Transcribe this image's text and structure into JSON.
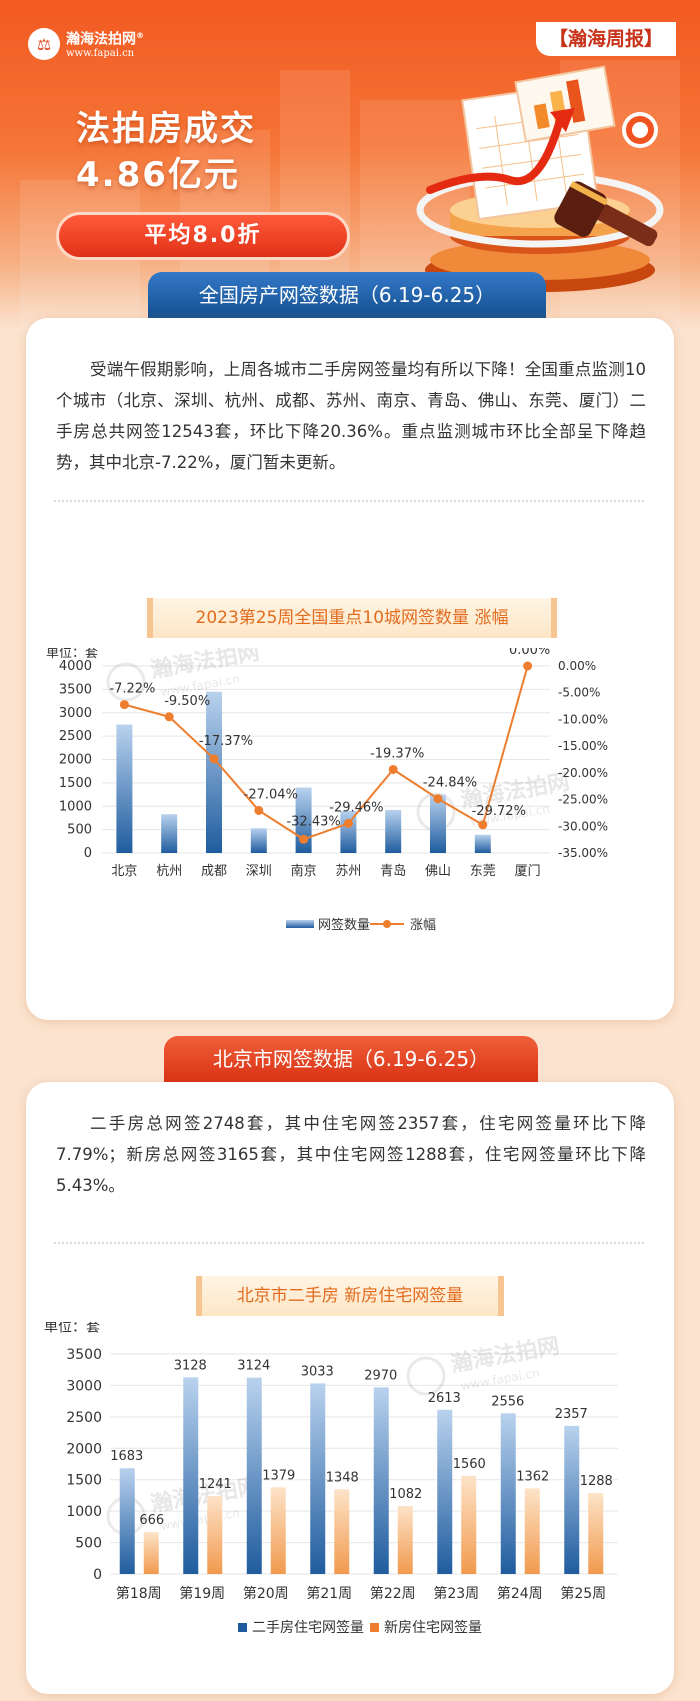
{
  "header": {
    "brand": "瀚海法拍网",
    "brand_mark": "®",
    "brand_url": "www.fapai.cn",
    "weekly_label": "【瀚海周报】",
    "headline_line1": "法拍房成交",
    "headline_line2": "4.86亿元",
    "discount_pill": "平均8.0折"
  },
  "section1": {
    "tab_title": "全国房产网签数据（6.19-6.25）",
    "paragraph": "受端午假期影响，上周各城市二手房网签量均有所以下降！全国重点监测10个城市（北京、深圳、杭州、成都、苏州、南京、青岛、佛山、东莞、厦门）二手房总共网签12543套，环比下降20.36%。重点监测城市环比全部呈下降趋势，其中北京-7.22%，厦门暂未更新。",
    "chart_ribbon": "2023第25周全国重点10城网签数量 涨幅"
  },
  "section2": {
    "tab_title": "北京市网签数据（6.19-6.25）",
    "paragraph": "二手房总网签2748套，其中住宅网签2357套，住宅网签量环比下降7.79%；新房总网签3165套，其中住宅网签1288套，住宅网签量环比下降5.43%。",
    "chart_ribbon": "北京市二手房 新房住宅网签量"
  },
  "watermark": {
    "name": "瀚海法拍网",
    "url": "www.fapai.cn"
  },
  "colors": {
    "blue": "#1f5c9e",
    "orange": "#ee7d2e",
    "red": "#d93215",
    "header": "#f25a22"
  },
  "chart_data": [
    {
      "type": "bar",
      "unit_label": "单位：套",
      "categories": [
        "北京",
        "杭州",
        "成都",
        "深圳",
        "南京",
        "苏州",
        "青岛",
        "佛山",
        "东莞",
        "厦门"
      ],
      "series": [
        {
          "name": "网签数量",
          "type": "bar",
          "axis": "left",
          "values": [
            2748,
            830,
            3450,
            530,
            1400,
            900,
            920,
            1250,
            390,
            null
          ]
        },
        {
          "name": "涨幅",
          "type": "line",
          "axis": "right",
          "values": [
            -7.22,
            -9.5,
            -17.37,
            -27.04,
            -32.43,
            -29.46,
            -19.37,
            -24.84,
            -29.72,
            0.0
          ],
          "labels": [
            "-7.22%",
            "-9.50%",
            "-17.37%",
            "-27.04%",
            "-32.43%",
            "-29.46%",
            "-19.37%",
            "-24.84%",
            "-29.72%",
            "0.00%"
          ]
        }
      ],
      "y_left": {
        "min": 0,
        "max": 4000,
        "ticks": [
          "0",
          "500",
          "1000",
          "1500",
          "2000",
          "2500",
          "3000",
          "3500",
          "4000"
        ]
      },
      "y_right": {
        "min": -35,
        "max": 0,
        "ticks": [
          "0.00%",
          "-5.00%",
          "-10.00%",
          "-15.00%",
          "-20.00%",
          "-25.00%",
          "-30.00%",
          "-35.00%"
        ]
      },
      "legend": "bottom"
    },
    {
      "type": "bar",
      "unit_label": "单位：套",
      "categories": [
        "第18周",
        "第19周",
        "第20周",
        "第21周",
        "第22周",
        "第23周",
        "第24周",
        "第25周"
      ],
      "series": [
        {
          "name": "二手房住宅网签量",
          "values": [
            1683,
            3128,
            3124,
            3033,
            2970,
            2613,
            2556,
            2357
          ]
        },
        {
          "name": "新房住宅网签量",
          "values": [
            666,
            1241,
            1379,
            1348,
            1082,
            1560,
            1362,
            1288
          ]
        }
      ],
      "y": {
        "min": 0,
        "max": 3500,
        "ticks": [
          "0",
          "500",
          "1000",
          "1500",
          "2000",
          "2500",
          "3000",
          "3500"
        ]
      },
      "legend": "bottom"
    }
  ]
}
